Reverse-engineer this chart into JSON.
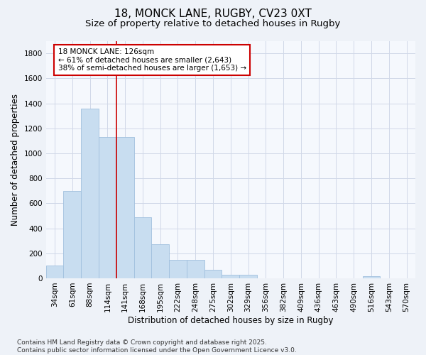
{
  "title1": "18, MONCK LANE, RUGBY, CV23 0XT",
  "title2": "Size of property relative to detached houses in Rugby",
  "xlabel": "Distribution of detached houses by size in Rugby",
  "ylabel": "Number of detached properties",
  "categories": [
    "34sqm",
    "61sqm",
    "88sqm",
    "114sqm",
    "141sqm",
    "168sqm",
    "195sqm",
    "222sqm",
    "248sqm",
    "275sqm",
    "302sqm",
    "329sqm",
    "356sqm",
    "382sqm",
    "409sqm",
    "436sqm",
    "463sqm",
    "490sqm",
    "516sqm",
    "543sqm",
    "570sqm"
  ],
  "values": [
    100,
    700,
    1360,
    1130,
    1130,
    490,
    275,
    145,
    145,
    70,
    30,
    30,
    0,
    0,
    0,
    0,
    0,
    0,
    15,
    0,
    0
  ],
  "bar_color": "#c8ddf0",
  "bar_edge_color": "#a0c0de",
  "grid_color": "#d0d8e8",
  "bg_color": "#eef2f8",
  "plot_bg_color": "#f5f8fd",
  "annotation_line1": "18 MONCK LANE: 126sqm",
  "annotation_line2": "← 61% of detached houses are smaller (2,643)",
  "annotation_line3": "38% of semi-detached houses are larger (1,653) →",
  "annotation_box_color": "#ffffff",
  "annotation_box_edge": "#cc0000",
  "vline_color": "#cc0000",
  "vline_x": 3.5,
  "ylim": [
    0,
    1900
  ],
  "yticks": [
    0,
    200,
    400,
    600,
    800,
    1000,
    1200,
    1400,
    1600,
    1800
  ],
  "footnote": "Contains HM Land Registry data © Crown copyright and database right 2025.\nContains public sector information licensed under the Open Government Licence v3.0.",
  "title_fontsize": 11,
  "subtitle_fontsize": 9.5,
  "label_fontsize": 8.5,
  "tick_fontsize": 7.5,
  "annotation_fontsize": 7.5,
  "footnote_fontsize": 6.5
}
